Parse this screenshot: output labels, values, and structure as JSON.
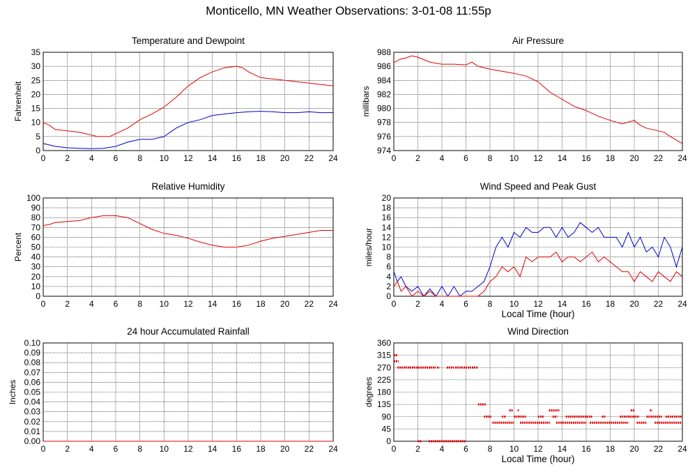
{
  "page_title": "Monticello, MN Weather Observations: 3-01-08 11:55p",
  "colors": {
    "red": "#e00000",
    "blue": "#0000c8",
    "grid": "#000000"
  },
  "chart_data": [
    {
      "id": "temp",
      "type": "line",
      "title": "Temperature and Dewpoint",
      "xlabel": "",
      "ylabel": "Fahrenheit",
      "xlim": [
        0,
        24
      ],
      "ylim": [
        0,
        35
      ],
      "xticks": [
        0,
        2,
        4,
        6,
        8,
        10,
        12,
        14,
        16,
        18,
        20,
        22,
        24
      ],
      "yticks": [
        0,
        5,
        10,
        15,
        20,
        25,
        30,
        35
      ],
      "grid": true,
      "series": [
        {
          "color": "red",
          "x": [
            0,
            0.5,
            1,
            2,
            3,
            4,
            4.5,
            5,
            5.5,
            6,
            7,
            8,
            9,
            10,
            11,
            12,
            13,
            14,
            15,
            16,
            16.5,
            17,
            18,
            19,
            20,
            21,
            22,
            23,
            24
          ],
          "y": [
            10,
            9,
            7.5,
            7,
            6.5,
            5.5,
            5,
            5,
            5,
            6,
            8,
            11,
            13,
            15.5,
            19,
            23,
            26,
            28,
            29.5,
            30,
            29.5,
            28,
            26,
            25.5,
            25,
            24.5,
            24,
            23.5,
            23
          ]
        },
        {
          "color": "blue",
          "x": [
            0,
            0.5,
            1,
            2,
            3,
            4,
            5,
            6,
            7,
            8,
            9,
            10,
            11,
            12,
            13,
            14,
            15,
            16,
            17,
            18,
            19,
            20,
            21,
            22,
            23,
            24
          ],
          "y": [
            2.5,
            2,
            1.5,
            1,
            0.8,
            0.7,
            0.8,
            1.5,
            3,
            4,
            4,
            5,
            8,
            10,
            11,
            12.5,
            13,
            13.5,
            13.8,
            14,
            13.8,
            13.5,
            13.5,
            13.8,
            13.5,
            13.5
          ]
        }
      ]
    },
    {
      "id": "pressure",
      "type": "line",
      "title": "Air Pressure",
      "xlabel": "",
      "ylabel": "millibars",
      "xlim": [
        0,
        24
      ],
      "ylim": [
        974,
        988
      ],
      "xticks": [
        0,
        2,
        4,
        6,
        8,
        10,
        12,
        14,
        16,
        18,
        20,
        22,
        24
      ],
      "yticks": [
        974,
        976,
        978,
        980,
        982,
        984,
        986,
        988
      ],
      "grid": true,
      "series": [
        {
          "color": "red",
          "x": [
            0,
            0.5,
            1,
            1.5,
            2,
            3,
            4,
            5,
            6,
            6.5,
            7,
            8,
            9,
            10,
            11,
            12,
            13,
            14,
            15,
            16,
            17,
            18,
            19,
            20,
            20.5,
            21,
            22,
            22.5,
            23,
            24
          ],
          "y": [
            986.5,
            987,
            987.2,
            987.5,
            987.3,
            986.6,
            986.3,
            986.3,
            986.2,
            986.6,
            986,
            985.6,
            985.3,
            985,
            984.6,
            983.8,
            982.3,
            981.3,
            980.3,
            979.7,
            978.9,
            978.3,
            977.8,
            978.3,
            977.6,
            977.2,
            976.8,
            976.6,
            976,
            975
          ]
        }
      ]
    },
    {
      "id": "humidity",
      "type": "line",
      "title": "Relative Humidity",
      "xlabel": "",
      "ylabel": "Percent",
      "xlim": [
        0,
        24
      ],
      "ylim": [
        0,
        100
      ],
      "xticks": [
        0,
        2,
        4,
        6,
        8,
        10,
        12,
        14,
        16,
        18,
        20,
        22,
        24
      ],
      "yticks": [
        0,
        10,
        20,
        30,
        40,
        50,
        60,
        70,
        80,
        90,
        100
      ],
      "grid": true,
      "series": [
        {
          "color": "red",
          "x": [
            0,
            0.5,
            1,
            2,
            3,
            4,
            5,
            6,
            7,
            8,
            9,
            10,
            11,
            12,
            13,
            14,
            15,
            16,
            17,
            18,
            19,
            20,
            21,
            22,
            23,
            24
          ],
          "y": [
            72,
            73,
            75,
            76,
            77,
            80,
            82,
            82,
            80,
            74,
            68,
            64,
            62,
            59,
            55,
            52,
            50,
            50,
            52,
            56,
            59,
            61,
            63,
            65,
            67,
            67
          ]
        }
      ]
    },
    {
      "id": "wind",
      "type": "line",
      "title": "Wind Speed and Peak Gust",
      "xlabel": "Local Time (hour)",
      "ylabel": "miles/hour",
      "xlim": [
        0,
        24
      ],
      "ylim": [
        0,
        20
      ],
      "xticks": [
        0,
        2,
        4,
        6,
        8,
        10,
        12,
        14,
        16,
        18,
        20,
        22,
        24
      ],
      "yticks": [
        0,
        2,
        4,
        6,
        8,
        10,
        12,
        14,
        16,
        18,
        20
      ],
      "grid": true,
      "series": [
        {
          "color": "blue",
          "x": [
            0,
            0.3,
            0.6,
            1,
            1.5,
            2,
            2.5,
            3,
            3.5,
            4,
            4.5,
            5,
            5.5,
            6,
            6.5,
            7,
            7.5,
            8,
            8.5,
            9,
            9.5,
            10,
            10.5,
            11,
            11.5,
            12,
            12.5,
            13,
            13.5,
            14,
            14.5,
            15,
            15.5,
            16,
            16.5,
            17,
            17.5,
            18,
            18.5,
            19,
            19.5,
            20,
            20.5,
            21,
            21.5,
            22,
            22.5,
            23,
            23.5,
            24
          ],
          "y": [
            5,
            3,
            4,
            2,
            1,
            2,
            0,
            1.5,
            0,
            2,
            0,
            2,
            0,
            1,
            1,
            2,
            3,
            6,
            10,
            12,
            10,
            13,
            12,
            14,
            13,
            13,
            14,
            14,
            12,
            14,
            12,
            13,
            15,
            14,
            13,
            14,
            12,
            12,
            12,
            10,
            13,
            10,
            12,
            9,
            10,
            8,
            12,
            10,
            6,
            10
          ]
        },
        {
          "color": "red",
          "x": [
            0,
            0.3,
            0.6,
            1,
            1.5,
            2,
            2.5,
            3,
            3.5,
            4,
            4.5,
            5,
            5.5,
            6,
            6.5,
            7,
            7.5,
            8,
            8.5,
            9,
            9.5,
            10,
            10.5,
            11,
            11.5,
            12,
            12.5,
            13,
            13.5,
            14,
            14.5,
            15,
            15.5,
            16,
            16.5,
            17,
            17.5,
            18,
            18.5,
            19,
            19.5,
            20,
            20.5,
            21,
            21.5,
            22,
            22.5,
            23,
            23.5,
            24
          ],
          "y": [
            2,
            3,
            1,
            2,
            0,
            1,
            0,
            1,
            0,
            0,
            0,
            0,
            0,
            0,
            0,
            0,
            1,
            3,
            4,
            6,
            5,
            6,
            4,
            8,
            7,
            8,
            8,
            8,
            9,
            7,
            8,
            8,
            7,
            8,
            9,
            7,
            8,
            7,
            6,
            5,
            5,
            3,
            5,
            4,
            3,
            5,
            4,
            3,
            5,
            4
          ]
        }
      ]
    },
    {
      "id": "rain",
      "type": "line",
      "title": "24 hour Accumulated Rainfall",
      "xlabel": "",
      "ylabel": "Inches",
      "xlim": [
        0,
        24
      ],
      "ylim": [
        0,
        0.1
      ],
      "xticks": [
        0,
        2,
        4,
        6,
        8,
        10,
        12,
        14,
        16,
        18,
        20,
        22,
        24
      ],
      "yticks": [
        "0.00",
        "0.01",
        "0.02",
        "0.03",
        "0.04",
        "0.05",
        "0.06",
        "0.07",
        "0.08",
        "0.09",
        "0.10"
      ],
      "grid": true,
      "series": [
        {
          "color": "red",
          "x": [
            0,
            24
          ],
          "y": [
            0,
            0
          ]
        }
      ]
    },
    {
      "id": "direction",
      "type": "scatter",
      "title": "Wind Direction",
      "xlabel": "Local Time (hour)",
      "ylabel": "degrees",
      "xlim": [
        0,
        24
      ],
      "ylim": [
        0,
        360
      ],
      "xticks": [
        0,
        2,
        4,
        6,
        8,
        10,
        12,
        14,
        16,
        18,
        20,
        22,
        24
      ],
      "yticks": [
        0,
        45,
        90,
        135,
        180,
        225,
        270,
        315,
        360
      ],
      "grid": true,
      "segments": [
        {
          "y": 315,
          "x0": 0,
          "x1": 0.3
        },
        {
          "y": 293,
          "x0": 0,
          "x1": 0.4
        },
        {
          "y": 270,
          "x0": 0.3,
          "x1": 3.5
        },
        {
          "y": 270,
          "x0": 3.6,
          "x1": 3.8
        },
        {
          "y": 270,
          "x0": 4.4,
          "x1": 5
        },
        {
          "y": 270,
          "x0": 5.1,
          "x1": 7
        },
        {
          "y": 0,
          "x0": 2,
          "x1": 2.3
        },
        {
          "y": 0,
          "x0": 2.9,
          "x1": 6
        },
        {
          "y": 135,
          "x0": 7,
          "x1": 7.7
        },
        {
          "y": 90,
          "x0": 7.5,
          "x1": 8.1
        },
        {
          "y": 68,
          "x0": 8.2,
          "x1": 10
        },
        {
          "y": 90,
          "x0": 9,
          "x1": 9.3
        },
        {
          "y": 113,
          "x0": 9.6,
          "x1": 9.9
        },
        {
          "y": 113,
          "x0": 10.3,
          "x1": 10.4
        },
        {
          "y": 90,
          "x0": 10,
          "x1": 11
        },
        {
          "y": 68,
          "x0": 10.5,
          "x1": 13
        },
        {
          "y": 90,
          "x0": 12,
          "x1": 12.5
        },
        {
          "y": 113,
          "x0": 12.9,
          "x1": 13.8
        },
        {
          "y": 90,
          "x0": 13.2,
          "x1": 13.6
        },
        {
          "y": 68,
          "x0": 13.5,
          "x1": 16
        },
        {
          "y": 90,
          "x0": 14.3,
          "x1": 16.5
        },
        {
          "y": 68,
          "x0": 16.3,
          "x1": 19.5
        },
        {
          "y": 90,
          "x0": 17.3,
          "x1": 17.6
        },
        {
          "y": 90,
          "x0": 18.8,
          "x1": 20.4
        },
        {
          "y": 113,
          "x0": 19.7,
          "x1": 20
        },
        {
          "y": 68,
          "x0": 20.2,
          "x1": 21
        },
        {
          "y": 90,
          "x0": 21,
          "x1": 22.3
        },
        {
          "y": 113,
          "x0": 21.3,
          "x1": 21.5
        },
        {
          "y": 68,
          "x0": 21.7,
          "x1": 24
        },
        {
          "y": 90,
          "x0": 22.6,
          "x1": 24
        }
      ]
    }
  ]
}
